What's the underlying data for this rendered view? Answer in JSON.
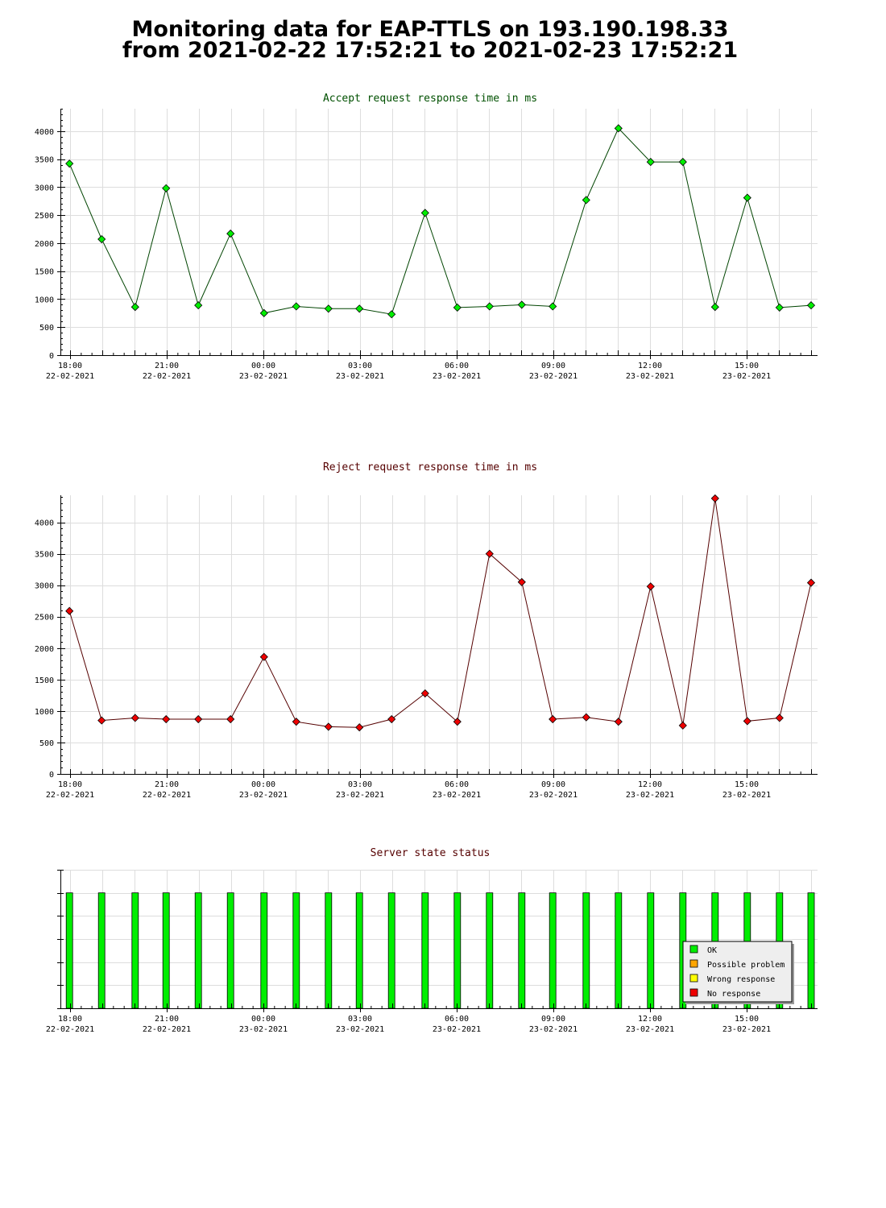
{
  "page": {
    "title_line1": "Monitoring data for EAP-TTLS on 193.190.198.33",
    "title_line2": "from 2021-02-22 17:52:21 to 2021-02-23 17:52:21"
  },
  "colors": {
    "accept_line": "#004400",
    "accept_marker": "#00ee00",
    "reject_line": "#550000",
    "reject_marker": "#ee0000",
    "title_accept": "#005000",
    "title_reject": "#550000",
    "status_ok": "#00ee00",
    "status_possible_problem": "#ffa500",
    "status_wrong_response": "#ffff00",
    "status_no_response": "#ee0000"
  },
  "chart_data": [
    {
      "type": "line",
      "title": "Accept request response time in ms",
      "xlabel": "",
      "ylabel": "",
      "x_unit": "hours since 2021-02-22 18:00",
      "x_tick_labels": [
        {
          "time": "18:00",
          "date": "22-02-2021",
          "hour": 0
        },
        {
          "time": "21:00",
          "date": "22-02-2021",
          "hour": 3
        },
        {
          "time": "00:00",
          "date": "23-02-2021",
          "hour": 6
        },
        {
          "time": "03:00",
          "date": "23-02-2021",
          "hour": 9
        },
        {
          "time": "06:00",
          "date": "23-02-2021",
          "hour": 12
        },
        {
          "time": "09:00",
          "date": "23-02-2021",
          "hour": 15
        },
        {
          "time": "12:00",
          "date": "23-02-2021",
          "hour": 18
        },
        {
          "time": "15:00",
          "date": "23-02-2021",
          "hour": 21
        }
      ],
      "y_ticks": [
        0,
        500,
        1000,
        1500,
        2000,
        2500,
        3000,
        3500,
        4000
      ],
      "xlim": [
        -0.3,
        23.2
      ],
      "ylim": [
        0,
        4400
      ],
      "grid": true,
      "x": [
        -0.02,
        0.98,
        2.02,
        2.98,
        3.98,
        4.98,
        6.02,
        7.02,
        8.02,
        8.98,
        9.98,
        11.02,
        12.02,
        13.02,
        14.02,
        14.98,
        16.02,
        17.02,
        18.02,
        19.02,
        20.02,
        21.02,
        22.02,
        23.0
      ],
      "y": [
        3420,
        2070,
        860,
        2980,
        890,
        2170,
        750,
        870,
        830,
        830,
        730,
        2540,
        850,
        870,
        900,
        870,
        2770,
        4050,
        3450,
        3450,
        860,
        2810,
        850,
        890
      ]
    },
    {
      "type": "line",
      "title": "Reject request response time in ms",
      "xlabel": "",
      "ylabel": "",
      "x_unit": "hours since 2021-02-22 18:00",
      "x_tick_labels": [
        {
          "time": "18:00",
          "date": "22-02-2021",
          "hour": 0
        },
        {
          "time": "21:00",
          "date": "22-02-2021",
          "hour": 3
        },
        {
          "time": "00:00",
          "date": "23-02-2021",
          "hour": 6
        },
        {
          "time": "03:00",
          "date": "23-02-2021",
          "hour": 9
        },
        {
          "time": "06:00",
          "date": "23-02-2021",
          "hour": 12
        },
        {
          "time": "09:00",
          "date": "23-02-2021",
          "hour": 15
        },
        {
          "time": "12:00",
          "date": "23-02-2021",
          "hour": 18
        },
        {
          "time": "15:00",
          "date": "23-02-2021",
          "hour": 21
        }
      ],
      "y_ticks": [
        0,
        500,
        1000,
        1500,
        2000,
        2500,
        3000,
        3500,
        4000
      ],
      "xlim": [
        -0.3,
        23.2
      ],
      "ylim": [
        0,
        4430
      ],
      "grid": true,
      "x": [
        -0.02,
        0.98,
        2.02,
        2.98,
        3.98,
        4.98,
        6.02,
        7.02,
        8.02,
        8.98,
        9.98,
        11.02,
        12.02,
        13.02,
        14.02,
        14.98,
        16.02,
        17.02,
        18.02,
        19.02,
        20.02,
        21.02,
        22.02,
        23.0
      ],
      "y": [
        2590,
        850,
        890,
        870,
        870,
        870,
        1860,
        830,
        750,
        740,
        870,
        1280,
        830,
        3500,
        3050,
        870,
        900,
        830,
        2980,
        770,
        4380,
        840,
        890,
        3040
      ]
    },
    {
      "type": "bar",
      "title": "Server state status",
      "xlabel": "",
      "ylabel": "",
      "x_unit": "hours since 2021-02-22 18:00",
      "x_tick_labels": [
        {
          "time": "18:00",
          "date": "22-02-2021",
          "hour": 0
        },
        {
          "time": "21:00",
          "date": "22-02-2021",
          "hour": 3
        },
        {
          "time": "00:00",
          "date": "23-02-2021",
          "hour": 6
        },
        {
          "time": "03:00",
          "date": "23-02-2021",
          "hour": 9
        },
        {
          "time": "06:00",
          "date": "23-02-2021",
          "hour": 12
        },
        {
          "time": "09:00",
          "date": "23-02-2021",
          "hour": 15
        },
        {
          "time": "12:00",
          "date": "23-02-2021",
          "hour": 18
        },
        {
          "time": "15:00",
          "date": "23-02-2021",
          "hour": 21
        }
      ],
      "xlim": [
        -0.3,
        23.2
      ],
      "ylim": [
        0,
        6
      ],
      "grid": true,
      "x": [
        -0.02,
        0.98,
        2.02,
        2.98,
        3.98,
        4.98,
        6.02,
        7.02,
        8.02,
        8.98,
        9.98,
        11.02,
        12.02,
        13.02,
        14.02,
        14.98,
        16.02,
        17.02,
        18.02,
        19.02,
        20.02,
        21.02,
        22.02,
        23.0
      ],
      "values": [
        5,
        5,
        5,
        5,
        5,
        5,
        5,
        5,
        5,
        5,
        5,
        5,
        5,
        5,
        5,
        5,
        5,
        5,
        5,
        5,
        5,
        5,
        5,
        5
      ],
      "status": [
        "OK",
        "OK",
        "OK",
        "OK",
        "OK",
        "OK",
        "OK",
        "OK",
        "OK",
        "OK",
        "OK",
        "OK",
        "OK",
        "OK",
        "OK",
        "OK",
        "OK",
        "OK",
        "OK",
        "OK",
        "OK",
        "OK",
        "OK",
        "OK"
      ],
      "legend": {
        "placement": "bottom-right",
        "items": [
          {
            "label": "OK",
            "color": "#00ee00"
          },
          {
            "label": "Possible problem",
            "color": "#ffa500"
          },
          {
            "label": "Wrong response",
            "color": "#ffff00"
          },
          {
            "label": "No response",
            "color": "#ee0000"
          }
        ]
      }
    }
  ]
}
